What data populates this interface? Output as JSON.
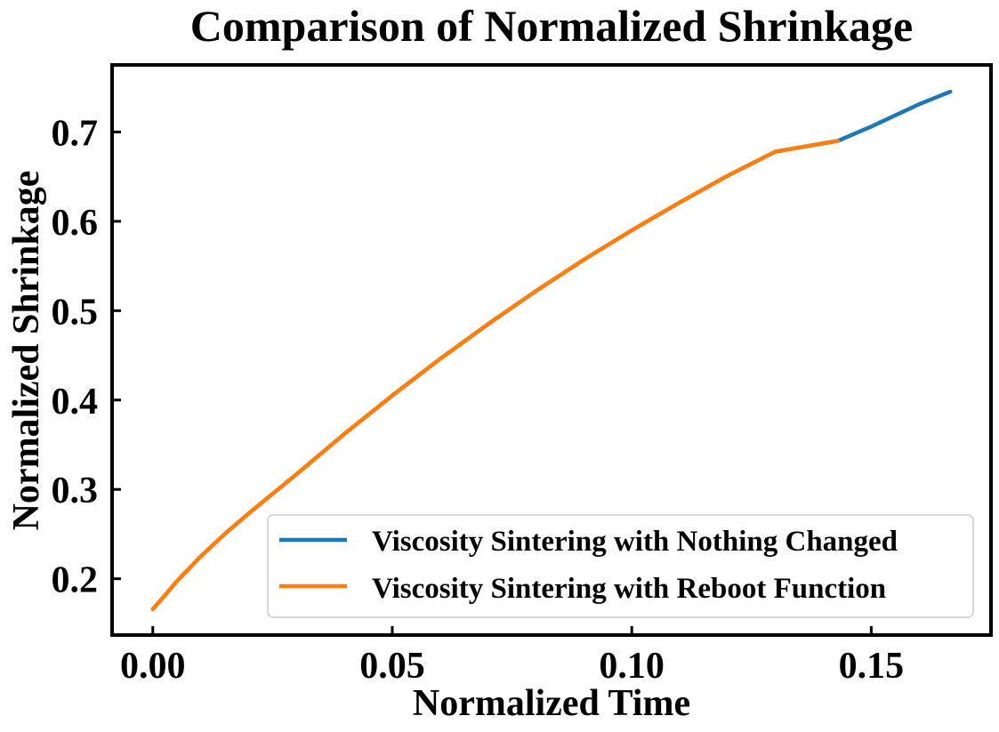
{
  "chart_data": {
    "type": "line",
    "title": "Comparison of Normalized Shrinkage",
    "xlabel": "Normalized Time",
    "ylabel": "Normalized Shrinkage",
    "xlim": [
      -0.0085,
      0.175
    ],
    "ylim": [
      0.137,
      0.775
    ],
    "xticks": [
      0.0,
      0.05,
      0.1,
      0.15
    ],
    "xtick_labels": [
      "0.00",
      "0.05",
      "0.10",
      "0.15"
    ],
    "yticks": [
      0.2,
      0.3,
      0.4,
      0.5,
      0.6,
      0.7
    ],
    "ytick_labels": [
      "0.2",
      "0.3",
      "0.4",
      "0.5",
      "0.6",
      "0.7"
    ],
    "grid": false,
    "legend_position": "lower-right",
    "series": [
      {
        "name": "Viscosity Sintering with Nothing Changed",
        "color": "#1f77b4",
        "x": [
          0.0,
          0.002,
          0.005,
          0.01,
          0.015,
          0.02,
          0.03,
          0.04,
          0.05,
          0.06,
          0.07,
          0.08,
          0.09,
          0.1,
          0.11,
          0.12,
          0.13,
          0.143,
          0.15,
          0.16,
          0.1665
        ],
        "y": [
          0.166,
          0.178,
          0.197,
          0.225,
          0.25,
          0.273,
          0.317,
          0.362,
          0.405,
          0.446,
          0.485,
          0.522,
          0.557,
          0.59,
          0.621,
          0.651,
          0.678,
          0.69,
          0.706,
          0.731,
          0.745
        ]
      },
      {
        "name": "Viscosity Sintering with Reboot Function",
        "color": "#ff7f0e",
        "x": [
          0.0,
          0.002,
          0.005,
          0.01,
          0.015,
          0.02,
          0.03,
          0.04,
          0.05,
          0.06,
          0.07,
          0.08,
          0.09,
          0.1,
          0.11,
          0.12,
          0.13,
          0.143
        ],
        "y": [
          0.166,
          0.178,
          0.197,
          0.225,
          0.25,
          0.273,
          0.317,
          0.362,
          0.405,
          0.446,
          0.485,
          0.522,
          0.557,
          0.59,
          0.621,
          0.651,
          0.678,
          0.69
        ]
      }
    ]
  }
}
